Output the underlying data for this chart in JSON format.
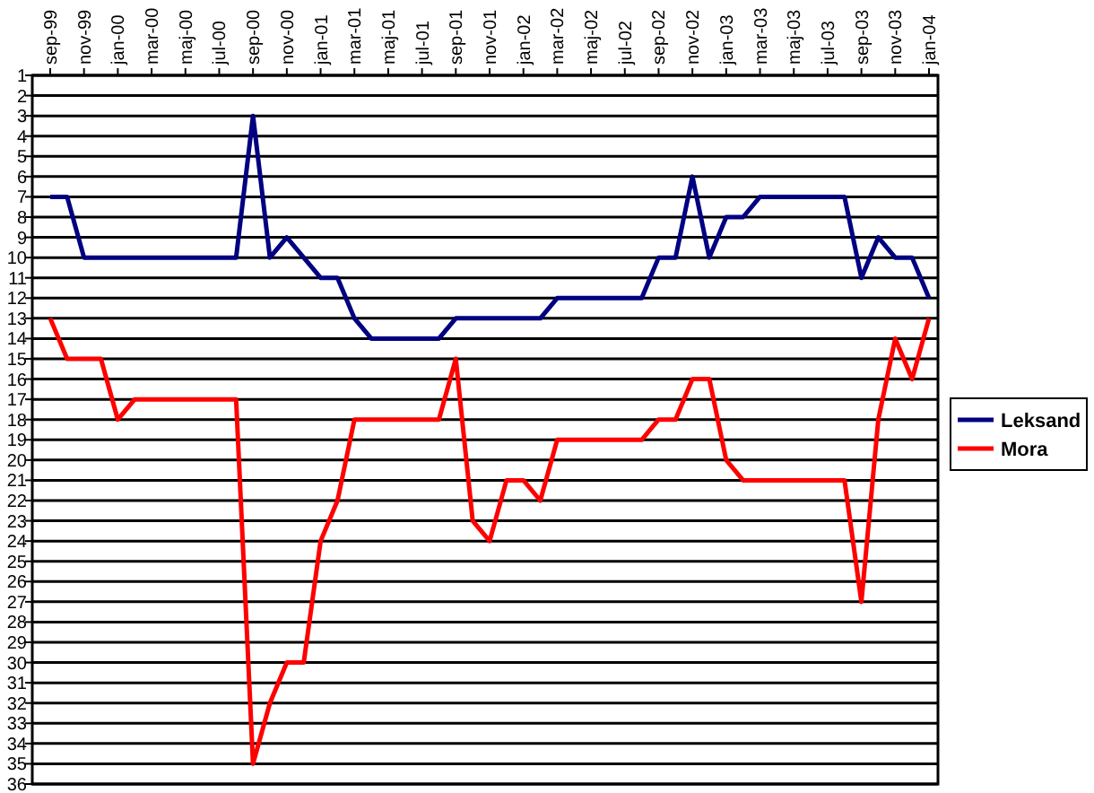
{
  "chart_data": {
    "type": "line",
    "categories": [
      "sep-99",
      null,
      "nov-99",
      null,
      "jan-00",
      null,
      "mar-00",
      null,
      "maj-00",
      null,
      "jul-00",
      null,
      "sep-00",
      null,
      "nov-00",
      null,
      "jan-01",
      null,
      "mar-01",
      null,
      "maj-01",
      null,
      "jul-01",
      null,
      "sep-01",
      null,
      "nov-01",
      null,
      "jan-02",
      null,
      "mar-02",
      null,
      "maj-02",
      null,
      "jul-02",
      null,
      "sep-02",
      null,
      "nov-02",
      null,
      "jan-03",
      null,
      "mar-03",
      null,
      "maj-03",
      null,
      "jul-03",
      null,
      "sep-03",
      null,
      "nov-03",
      null,
      "jan-04"
    ],
    "series": [
      {
        "name": "Leksand",
        "color": "#000080",
        "values": [
          7,
          7,
          10,
          10,
          10,
          10,
          10,
          10,
          10,
          10,
          10,
          10,
          3,
          10,
          9,
          10,
          11,
          11,
          13,
          14,
          14,
          14,
          14,
          14,
          13,
          13,
          13,
          13,
          13,
          13,
          12,
          12,
          12,
          12,
          12,
          12,
          10,
          10,
          6,
          10,
          8,
          8,
          7,
          7,
          7,
          7,
          7,
          7,
          11,
          9,
          10,
          10,
          12
        ]
      },
      {
        "name": "Mora",
        "color": "#ff0000",
        "values": [
          13,
          15,
          15,
          15,
          18,
          17,
          17,
          17,
          17,
          17,
          17,
          17,
          35,
          32,
          30,
          30,
          24,
          22,
          18,
          18,
          18,
          18,
          18,
          18,
          15,
          23,
          24,
          21,
          21,
          22,
          19,
          19,
          19,
          19,
          19,
          19,
          18,
          18,
          16,
          16,
          20,
          21,
          21,
          21,
          21,
          21,
          21,
          21,
          27,
          18,
          14,
          16,
          13
        ]
      }
    ],
    "ylim": [
      36,
      1
    ],
    "yticks": [
      1,
      2,
      3,
      4,
      5,
      6,
      7,
      8,
      9,
      10,
      11,
      12,
      13,
      14,
      15,
      16,
      17,
      18,
      19,
      20,
      21,
      22,
      23,
      24,
      25,
      26,
      27,
      28,
      29,
      30,
      31,
      32,
      33,
      34,
      35,
      36
    ],
    "grid": "y",
    "legend": "right",
    "marker": "none",
    "line_style": "solid"
  }
}
